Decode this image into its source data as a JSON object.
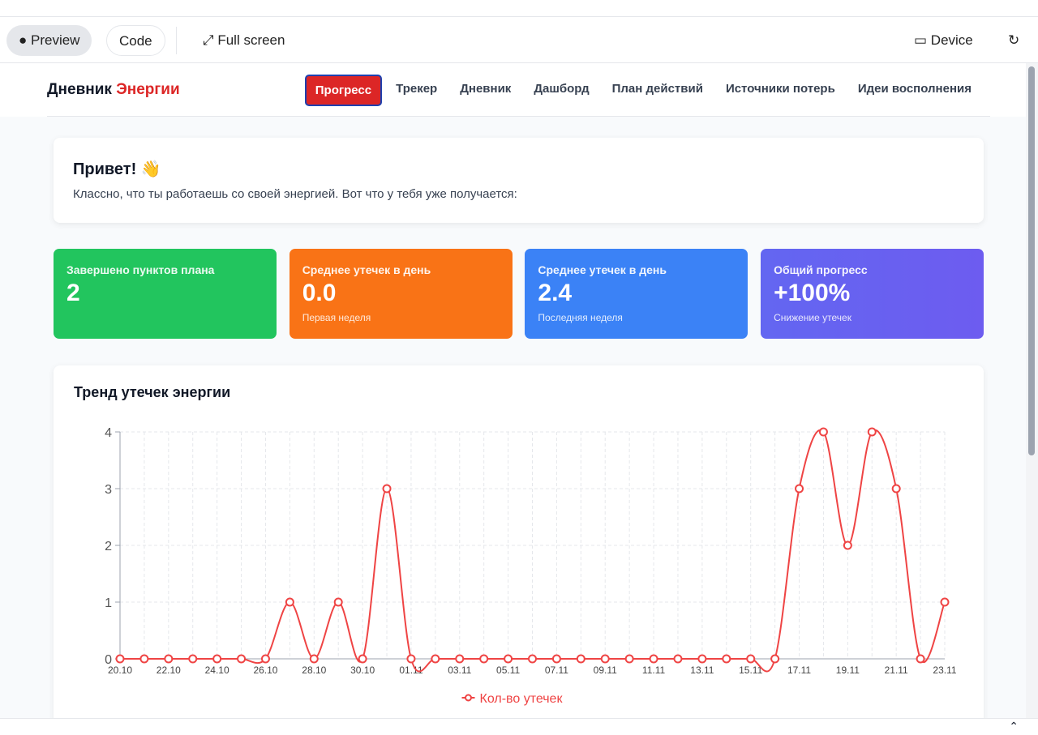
{
  "toolbar": {
    "preview": "Preview",
    "code": "Code",
    "full_screen": "Full screen",
    "device": "Device"
  },
  "app": {
    "brand_main": "Дневник",
    "brand_accent": "Энергии",
    "nav": [
      "Прогресс",
      "Трекер",
      "Дневник",
      "Дашборд",
      "План действий",
      "Источники потерь",
      "Идеи восполнения"
    ]
  },
  "greeting": {
    "title": "Привет! 👋",
    "text": "Классно, что ты работаешь со своей энергией. Вот что у тебя уже получается:"
  },
  "stats": [
    {
      "label": "Завершено пунктов плана",
      "value": "2"
    },
    {
      "label": "Среднее утечек в день",
      "value": "0.0",
      "note": "Первая неделя"
    },
    {
      "label": "Среднее утечек в день",
      "value": "2.4",
      "note": "Последняя неделя"
    },
    {
      "label": "Общий прогресс",
      "value": "+100%",
      "note": "Снижение утечек"
    }
  ],
  "chart_data": {
    "type": "line",
    "title": "Тренд утечек энергии",
    "categories": [
      "20.10",
      null,
      "22.10",
      null,
      "24.10",
      null,
      "26.10",
      null,
      "28.10",
      null,
      "30.10",
      null,
      "01.11",
      null,
      "03.11",
      null,
      "05.11",
      null,
      "07.11",
      null,
      "09.11",
      null,
      "11.11",
      null,
      "13.11",
      null,
      "15.11",
      null,
      "17.11",
      null,
      "19.11",
      null,
      "21.11",
      null,
      "23.11"
    ],
    "series": [
      {
        "name": "Кол-во утечек",
        "color": "#ef4444",
        "values": [
          0,
          0,
          0,
          0,
          0,
          0,
          0,
          1,
          0,
          1,
          0,
          3,
          0,
          0,
          0,
          0,
          0,
          0,
          0,
          0,
          0,
          0,
          0,
          0,
          0,
          0,
          0,
          0,
          3,
          4,
          2,
          4,
          3,
          0,
          1
        ]
      }
    ],
    "ylim": [
      0,
      4
    ],
    "yticks": [
      0,
      1,
      2,
      3,
      4
    ],
    "grid": true,
    "legend": "bottom"
  }
}
